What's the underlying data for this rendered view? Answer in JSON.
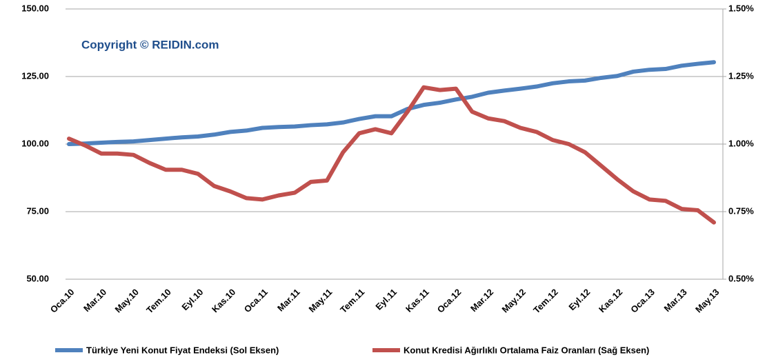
{
  "chart_data": {
    "type": "line",
    "annotation": "Copyright © REIDIN.com",
    "categories": [
      "Oca.10",
      null,
      "Mar.10",
      null,
      "May.10",
      null,
      "Tem.10",
      null,
      "Eyl.10",
      null,
      "Kas.10",
      null,
      "Oca.11",
      null,
      "Mar.11",
      null,
      "May.11",
      null,
      "Tem.11",
      null,
      "Eyl.11",
      null,
      "Kas.11",
      null,
      "Oca.12",
      null,
      "Mar.12",
      null,
      "May.12",
      null,
      "Tem.12",
      null,
      "Eyl.12",
      null,
      "Kas.12",
      null,
      "Oca.13",
      null,
      "Mar.13",
      null,
      "May.13"
    ],
    "series": [
      {
        "name": "Türkiye Yeni Konut Fiyat Endeksi (Sol Eksen)",
        "color": "#4f81bd",
        "values": [
          100,
          100.2,
          100.5,
          100.8,
          101,
          101.5,
          102,
          102.5,
          102.8,
          103.5,
          104.5,
          105,
          106,
          106.3,
          106.5,
          107,
          107.3,
          108,
          109.3,
          110.3,
          110.3,
          113,
          114.5,
          115.3,
          116.5,
          117.5,
          119,
          119.8,
          120.5,
          121.3,
          122.5,
          123.2,
          123.5,
          124.5,
          125.2,
          126.8,
          127.5,
          127.8,
          129,
          129.7,
          130.3
        ]
      },
      {
        "name": "Konut Kredisi Ağırlıklı Ortalama Faiz Oranları (Sağ Eksen)",
        "color": "#c0504d",
        "axis": "y2",
        "values": [
          1.02,
          0.995,
          0.965,
          0.965,
          0.96,
          0.93,
          0.905,
          0.905,
          0.89,
          0.845,
          0.825,
          0.8,
          0.795,
          0.81,
          0.82,
          0.86,
          0.865,
          0.97,
          1.04,
          1.055,
          1.04,
          1.12,
          1.21,
          1.2,
          1.205,
          1.12,
          1.095,
          1.085,
          1.06,
          1.045,
          1.015,
          1.0,
          0.97,
          0.92,
          0.87,
          0.825,
          0.795,
          0.79,
          0.76,
          0.755,
          0.71
        ]
      }
    ],
    "ylim": [
      50,
      150
    ],
    "yticks": [
      {
        "value": 50,
        "label": "50.00"
      },
      {
        "value": 75,
        "label": "75.00"
      },
      {
        "value": 100,
        "label": "100.00"
      },
      {
        "value": 125,
        "label": "125.00"
      },
      {
        "value": 150,
        "label": "150.00"
      }
    ],
    "y2lim": [
      0.5,
      1.5
    ],
    "y2ticks": [
      {
        "value": 0.5,
        "label": "0.50%"
      },
      {
        "value": 0.75,
        "label": "0.75%"
      },
      {
        "value": 1.0,
        "label": "1.00%"
      },
      {
        "value": 1.25,
        "label": "1.25%"
      },
      {
        "value": 1.5,
        "label": "1.50%"
      }
    ],
    "grid": true,
    "legend": "bottom"
  }
}
